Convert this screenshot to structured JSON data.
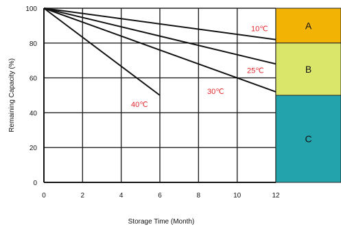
{
  "chart_data": {
    "type": "line",
    "title": "",
    "xlabel": "Storage Time (Month)",
    "ylabel": "Remaining Capacity (%)",
    "xlim": [
      0,
      12
    ],
    "ylim": [
      0,
      100
    ],
    "x_ticks": [
      "0",
      "2",
      "4",
      "6",
      "8",
      "10",
      "12"
    ],
    "y_ticks": [
      "0",
      "20",
      "40",
      "60",
      "80",
      "100"
    ],
    "grid": true,
    "line_color": "#111111",
    "label_color": "#e0262b",
    "series": [
      {
        "name": "10℃",
        "x": [
          0,
          12
        ],
        "y": [
          100,
          82
        ]
      },
      {
        "name": "25℃",
        "x": [
          0,
          12
        ],
        "y": [
          100,
          68
        ]
      },
      {
        "name": "30℃",
        "x": [
          0,
          12
        ],
        "y": [
          100,
          52
        ]
      },
      {
        "name": "40℃",
        "x": [
          0,
          6
        ],
        "y": [
          100,
          50
        ]
      }
    ],
    "zones": [
      {
        "label": "A",
        "from": 80,
        "to": 100,
        "color": "#f2b305"
      },
      {
        "label": "B",
        "from": 50,
        "to": 80,
        "color": "#d9e66a"
      },
      {
        "label": "C",
        "from": 0,
        "to": 50,
        "color": "#23a4ad"
      }
    ]
  }
}
